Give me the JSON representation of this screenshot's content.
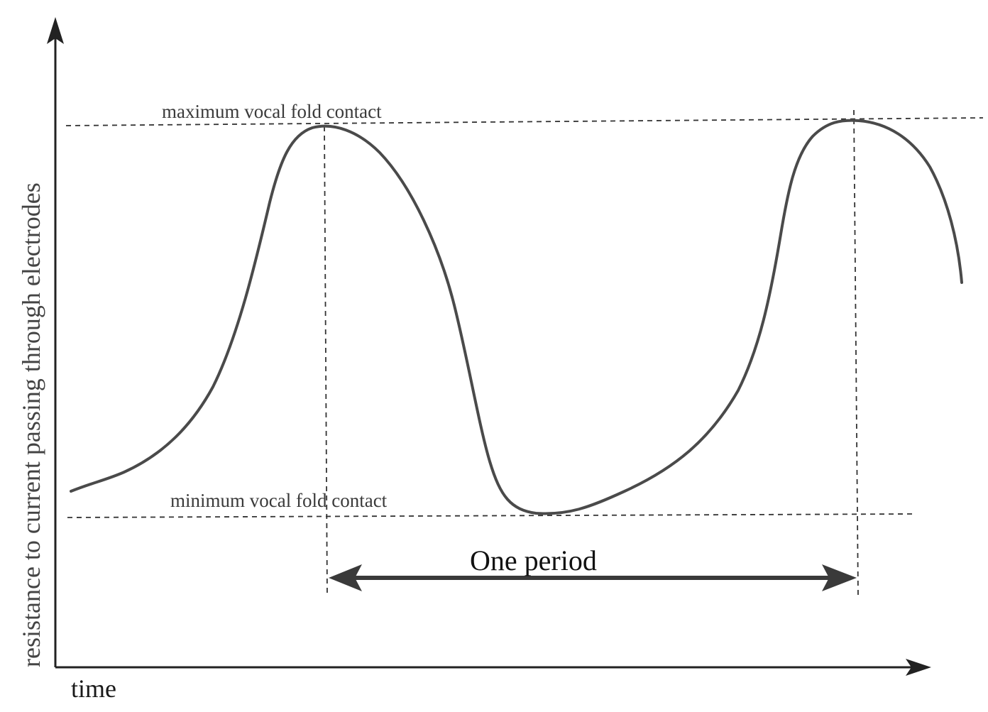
{
  "figure": {
    "y_axis_label": "resistance to current passing through electrodes",
    "x_axis_label": "time",
    "max_line_label": "maximum vocal fold contact",
    "min_line_label": "minimum vocal fold contact",
    "period_label": "One period"
  },
  "colors": {
    "curve": "#4a4a4a",
    "axis": "#222222",
    "guide": "#333333"
  }
}
